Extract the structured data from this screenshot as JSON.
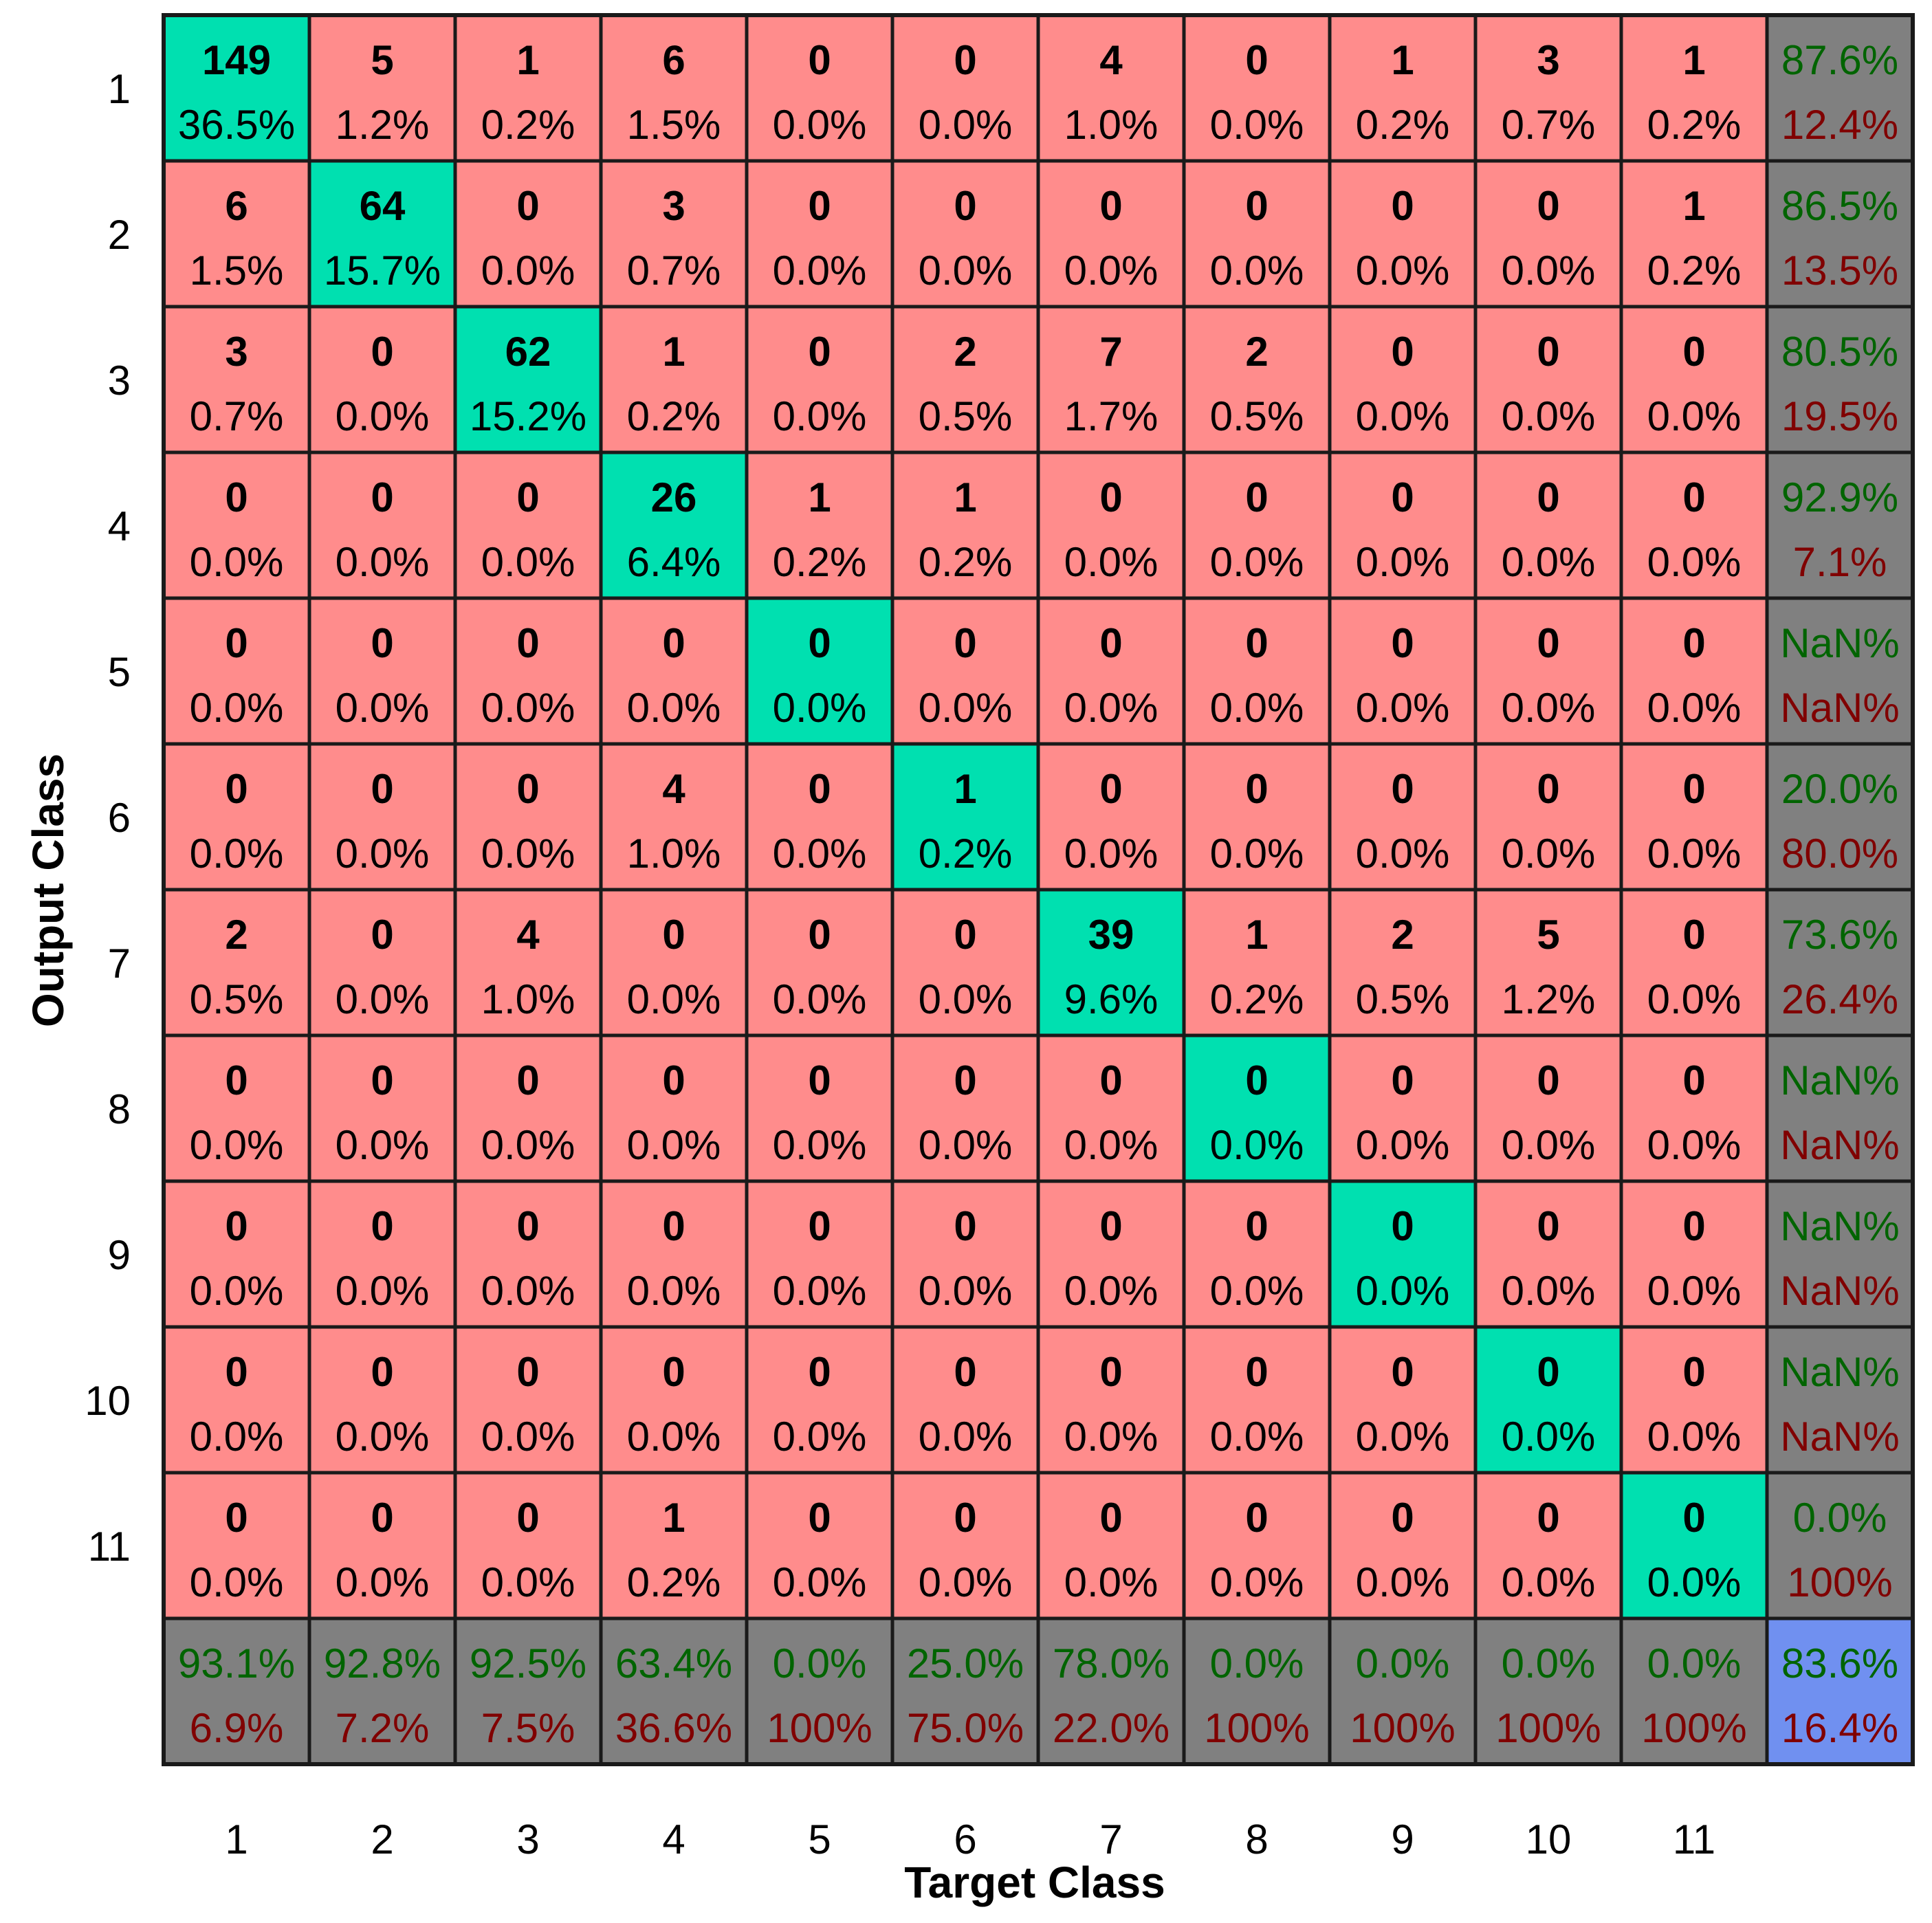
{
  "chart_data": {
    "type": "heatmap",
    "subtype": "confusion-matrix",
    "xlabel": "Target Class",
    "ylabel": "Output Class",
    "x_tick_labels": [
      "1",
      "2",
      "3",
      "4",
      "5",
      "6",
      "7",
      "8",
      "9",
      "10",
      "11"
    ],
    "y_tick_labels": [
      "1",
      "2",
      "3",
      "4",
      "5",
      "6",
      "7",
      "8",
      "9",
      "10",
      "11"
    ],
    "rows": [
      {
        "counts": [
          "149",
          "5",
          "1",
          "6",
          "0",
          "0",
          "4",
          "0",
          "1",
          "3",
          "1"
        ],
        "percents": [
          "36.5%",
          "1.2%",
          "0.2%",
          "1.5%",
          "0.0%",
          "0.0%",
          "1.0%",
          "0.0%",
          "0.2%",
          "0.7%",
          "0.2%"
        ],
        "summary": {
          "correct": "87.6%",
          "incorrect": "12.4%"
        }
      },
      {
        "counts": [
          "6",
          "64",
          "0",
          "3",
          "0",
          "0",
          "0",
          "0",
          "0",
          "0",
          "1"
        ],
        "percents": [
          "1.5%",
          "15.7%",
          "0.0%",
          "0.7%",
          "0.0%",
          "0.0%",
          "0.0%",
          "0.0%",
          "0.0%",
          "0.0%",
          "0.2%"
        ],
        "summary": {
          "correct": "86.5%",
          "incorrect": "13.5%"
        }
      },
      {
        "counts": [
          "3",
          "0",
          "62",
          "1",
          "0",
          "2",
          "7",
          "2",
          "0",
          "0",
          "0"
        ],
        "percents": [
          "0.7%",
          "0.0%",
          "15.2%",
          "0.2%",
          "0.0%",
          "0.5%",
          "1.7%",
          "0.5%",
          "0.0%",
          "0.0%",
          "0.0%"
        ],
        "summary": {
          "correct": "80.5%",
          "incorrect": "19.5%"
        }
      },
      {
        "counts": [
          "0",
          "0",
          "0",
          "26",
          "1",
          "1",
          "0",
          "0",
          "0",
          "0",
          "0"
        ],
        "percents": [
          "0.0%",
          "0.0%",
          "0.0%",
          "6.4%",
          "0.2%",
          "0.2%",
          "0.0%",
          "0.0%",
          "0.0%",
          "0.0%",
          "0.0%"
        ],
        "summary": {
          "correct": "92.9%",
          "incorrect": "7.1%"
        }
      },
      {
        "counts": [
          "0",
          "0",
          "0",
          "0",
          "0",
          "0",
          "0",
          "0",
          "0",
          "0",
          "0"
        ],
        "percents": [
          "0.0%",
          "0.0%",
          "0.0%",
          "0.0%",
          "0.0%",
          "0.0%",
          "0.0%",
          "0.0%",
          "0.0%",
          "0.0%",
          "0.0%"
        ],
        "summary": {
          "correct": "NaN%",
          "incorrect": "NaN%"
        }
      },
      {
        "counts": [
          "0",
          "0",
          "0",
          "4",
          "0",
          "1",
          "0",
          "0",
          "0",
          "0",
          "0"
        ],
        "percents": [
          "0.0%",
          "0.0%",
          "0.0%",
          "1.0%",
          "0.0%",
          "0.2%",
          "0.0%",
          "0.0%",
          "0.0%",
          "0.0%",
          "0.0%"
        ],
        "summary": {
          "correct": "20.0%",
          "incorrect": "80.0%"
        }
      },
      {
        "counts": [
          "2",
          "0",
          "4",
          "0",
          "0",
          "0",
          "39",
          "1",
          "2",
          "5",
          "0"
        ],
        "percents": [
          "0.5%",
          "0.0%",
          "1.0%",
          "0.0%",
          "0.0%",
          "0.0%",
          "9.6%",
          "0.2%",
          "0.5%",
          "1.2%",
          "0.0%"
        ],
        "summary": {
          "correct": "73.6%",
          "incorrect": "26.4%"
        }
      },
      {
        "counts": [
          "0",
          "0",
          "0",
          "0",
          "0",
          "0",
          "0",
          "0",
          "0",
          "0",
          "0"
        ],
        "percents": [
          "0.0%",
          "0.0%",
          "0.0%",
          "0.0%",
          "0.0%",
          "0.0%",
          "0.0%",
          "0.0%",
          "0.0%",
          "0.0%",
          "0.0%"
        ],
        "summary": {
          "correct": "NaN%",
          "incorrect": "NaN%"
        }
      },
      {
        "counts": [
          "0",
          "0",
          "0",
          "0",
          "0",
          "0",
          "0",
          "0",
          "0",
          "0",
          "0"
        ],
        "percents": [
          "0.0%",
          "0.0%",
          "0.0%",
          "0.0%",
          "0.0%",
          "0.0%",
          "0.0%",
          "0.0%",
          "0.0%",
          "0.0%",
          "0.0%"
        ],
        "summary": {
          "correct": "NaN%",
          "incorrect": "NaN%"
        }
      },
      {
        "counts": [
          "0",
          "0",
          "0",
          "0",
          "0",
          "0",
          "0",
          "0",
          "0",
          "0",
          "0"
        ],
        "percents": [
          "0.0%",
          "0.0%",
          "0.0%",
          "0.0%",
          "0.0%",
          "0.0%",
          "0.0%",
          "0.0%",
          "0.0%",
          "0.0%",
          "0.0%"
        ],
        "summary": {
          "correct": "NaN%",
          "incorrect": "NaN%"
        }
      },
      {
        "counts": [
          "0",
          "0",
          "0",
          "1",
          "0",
          "0",
          "0",
          "0",
          "0",
          "0",
          "0"
        ],
        "percents": [
          "0.0%",
          "0.0%",
          "0.0%",
          "0.2%",
          "0.0%",
          "0.0%",
          "0.0%",
          "0.0%",
          "0.0%",
          "0.0%",
          "0.0%"
        ],
        "summary": {
          "correct": "0.0%",
          "incorrect": "100%"
        }
      }
    ],
    "column_summary": [
      {
        "correct": "93.1%",
        "incorrect": "6.9%"
      },
      {
        "correct": "92.8%",
        "incorrect": "7.2%"
      },
      {
        "correct": "92.5%",
        "incorrect": "7.5%"
      },
      {
        "correct": "63.4%",
        "incorrect": "36.6%"
      },
      {
        "correct": "0.0%",
        "incorrect": "100%"
      },
      {
        "correct": "25.0%",
        "incorrect": "75.0%"
      },
      {
        "correct": "78.0%",
        "incorrect": "22.0%"
      },
      {
        "correct": "0.0%",
        "incorrect": "100%"
      },
      {
        "correct": "0.0%",
        "incorrect": "100%"
      },
      {
        "correct": "0.0%",
        "incorrect": "100%"
      },
      {
        "correct": "0.0%",
        "incorrect": "100%"
      }
    ],
    "overall": {
      "correct": "83.6%",
      "incorrect": "16.4%"
    }
  },
  "colors": {
    "diagonal": "#00e0b0",
    "off_diagonal": "#ff8c8c",
    "summary": "#808080",
    "overall": "#7090f0",
    "correct_text": "#006400",
    "incorrect_text": "#800000",
    "text": "#000000",
    "grid": "#1a1a1a"
  }
}
